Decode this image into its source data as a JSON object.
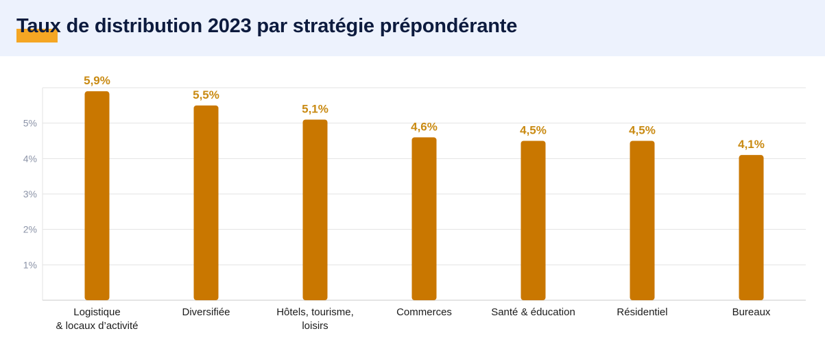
{
  "title": "Taux de distribution 2023 par stratégie prépondérante",
  "colors": {
    "bar": "#c97700",
    "value_label": "#c98a12",
    "title_accent": "#f5a623",
    "header_bg": "#edf2fd",
    "grid": "#e3e3e3",
    "tick": "#8b93a7"
  },
  "chart_data": {
    "type": "bar",
    "title": "Taux de distribution 2023 par stratégie prépondérante",
    "xlabel": "",
    "ylabel": "",
    "ylim": [
      0,
      6
    ],
    "yticks": [
      1,
      2,
      3,
      4,
      5
    ],
    "ytick_labels": [
      "1%",
      "2%",
      "3%",
      "4%",
      "5%"
    ],
    "grid": true,
    "categories": [
      "Logistique\n& locaux d’activité",
      "Diversifiée",
      "Hôtels, tourisme,\nloisirs",
      "Commerces",
      "Santé & éducation",
      "Résidentiel",
      "Bureaux"
    ],
    "values": [
      5.9,
      5.5,
      5.1,
      4.6,
      4.5,
      4.5,
      4.1
    ],
    "value_labels": [
      "5,9%",
      "5,5%",
      "5,1%",
      "4,6%",
      "4,5%",
      "4,5%",
      "4,1%"
    ]
  }
}
